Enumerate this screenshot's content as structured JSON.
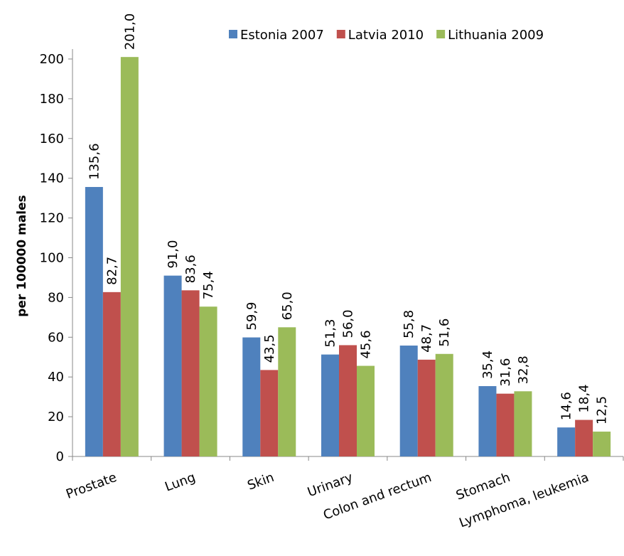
{
  "chart_data": {
    "type": "bar",
    "y_label": "per 100000 males",
    "categories": [
      "Prostate",
      "Lung",
      "Skin",
      "Urinary",
      "Colon and rectum",
      "Stomach",
      "Lymphoma, leukemia"
    ],
    "series": [
      {
        "name": "Estonia 2007",
        "color": "#4f81bd",
        "values": [
          135.6,
          91.0,
          59.9,
          51.3,
          55.8,
          35.4,
          14.6
        ],
        "value_labels": [
          "135,6",
          "91,0",
          "59,9",
          "51,3",
          "55,8",
          "35,4",
          "14,6"
        ]
      },
      {
        "name": "Latvia 2010",
        "color": "#c0504d",
        "values": [
          82.7,
          83.6,
          43.5,
          56.0,
          48.7,
          31.6,
          18.4
        ],
        "value_labels": [
          "82,7",
          "83,6",
          "43,5",
          "56,0",
          "48,7",
          "31,6",
          "18,4"
        ]
      },
      {
        "name": "Lithuania 2009",
        "color": "#9bbb59",
        "values": [
          201.0,
          75.4,
          65.0,
          45.6,
          51.6,
          32.8,
          12.5
        ],
        "value_labels": [
          "201,0",
          "75,4",
          "65,0",
          "45,6",
          "51,6",
          "32,8",
          "12,5"
        ]
      }
    ],
    "ylim": [
      0,
      205
    ],
    "yticks": [
      0,
      20,
      40,
      60,
      80,
      100,
      120,
      140,
      160,
      180,
      200
    ],
    "grid": false,
    "legend": "top-right"
  }
}
